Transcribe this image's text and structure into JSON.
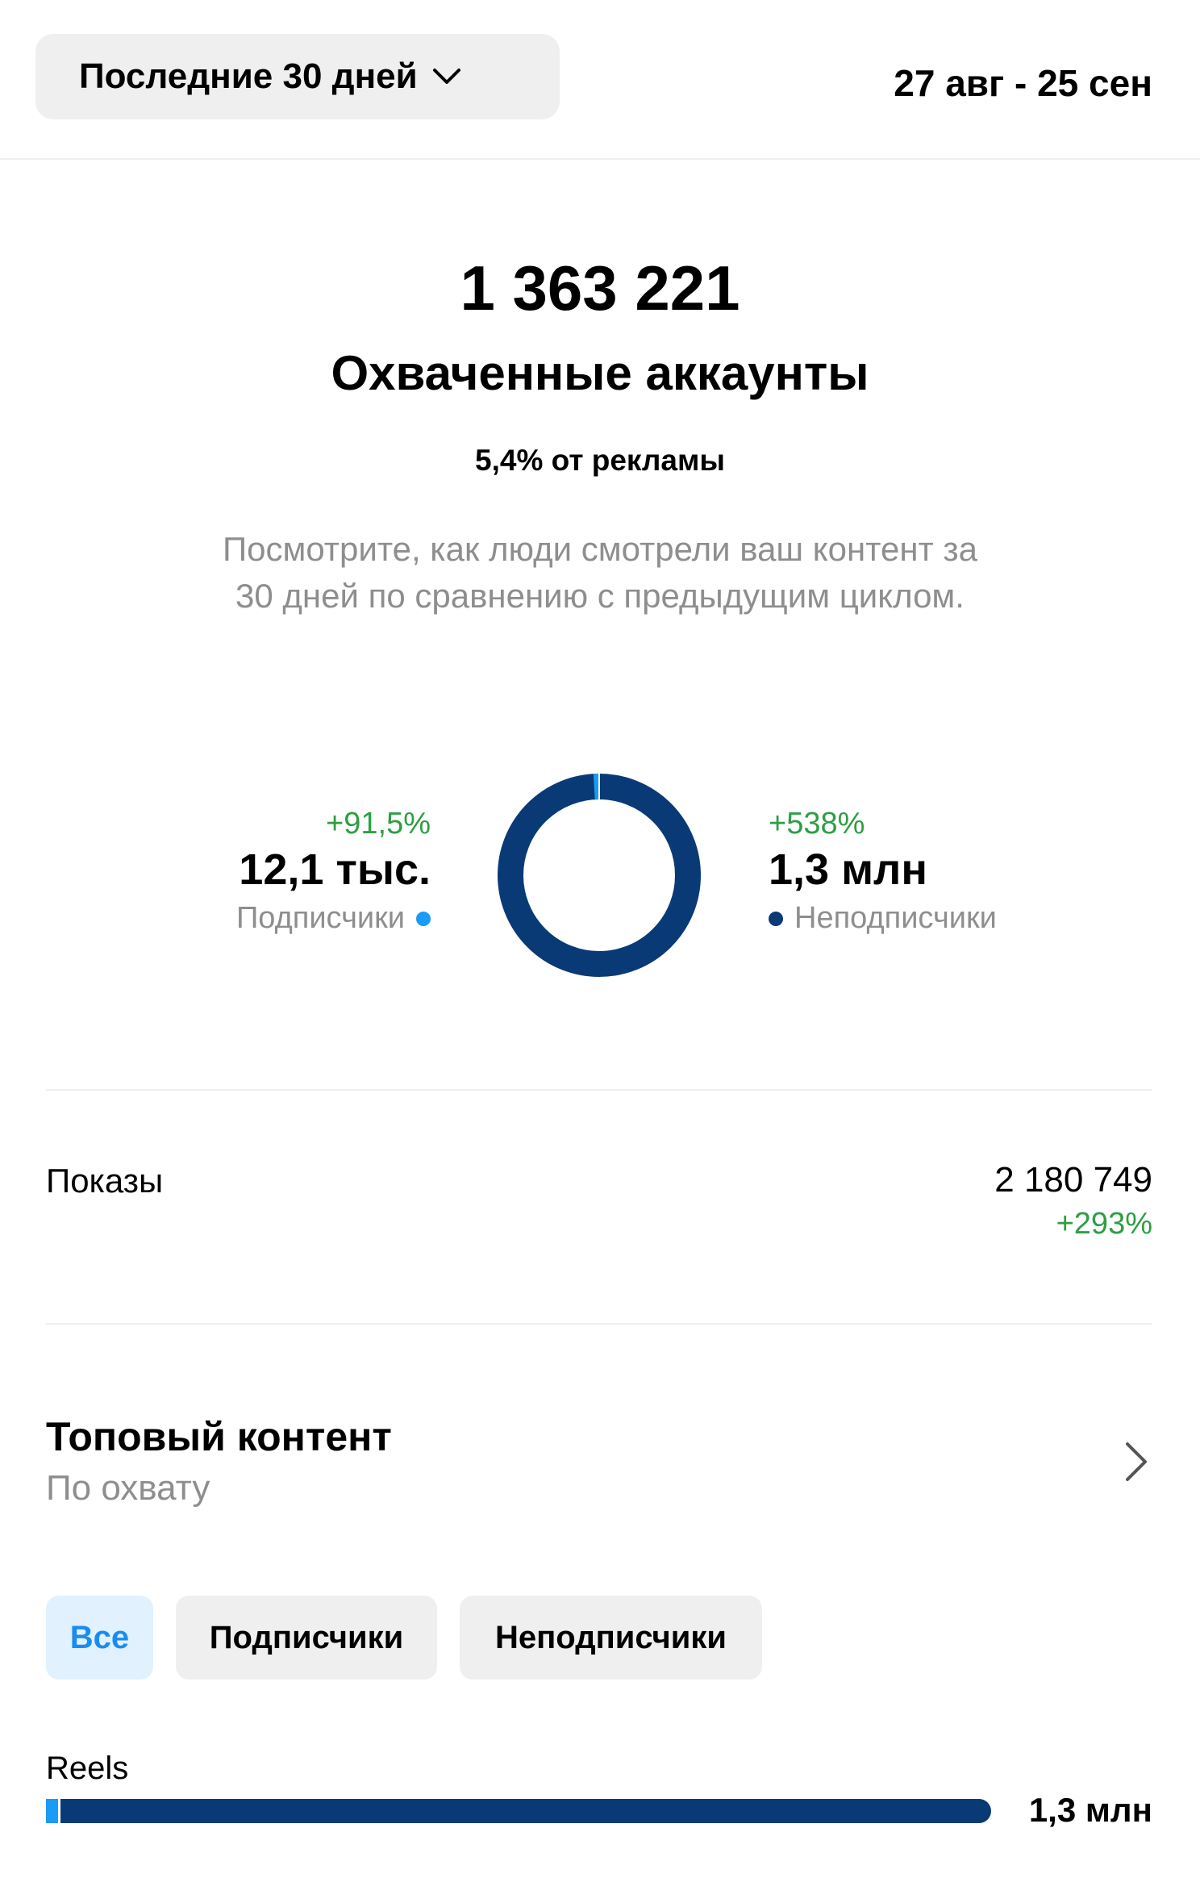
{
  "header": {
    "period_label": "Последние 30 дней",
    "date_range": "27 авг - 25 сен"
  },
  "summary": {
    "total": "1 363 221",
    "title": "Охваченные аккаунты",
    "ads_share": "5,4% от рекламы",
    "description_line1": "Посмотрите, как люди смотрели ваш контент за",
    "description_line2": "30 дней по сравнению с предыдущим циклом."
  },
  "audience": {
    "followers": {
      "change": "+91,5%",
      "value": "12,1 тыс.",
      "label": "Подписчики",
      "color": "#1a9bf5",
      "share": 0.009
    },
    "non_followers": {
      "change": "+538%",
      "value": "1,3 млн",
      "label": "Неподписчики",
      "color": "#0a3a75",
      "share": 0.991
    }
  },
  "impressions": {
    "label": "Показы",
    "value": "2 180 749",
    "change": "+293%"
  },
  "top_content": {
    "title": "Топовый контент",
    "subtitle": "По охвату",
    "chips": [
      "Все",
      "Подписчики",
      "Неподписчики"
    ],
    "selected_chip": "Все",
    "rows": [
      {
        "label": "Reels",
        "value": "1,3 млн",
        "followers_fraction": 0.013,
        "fraction": 1.0
      }
    ]
  }
}
